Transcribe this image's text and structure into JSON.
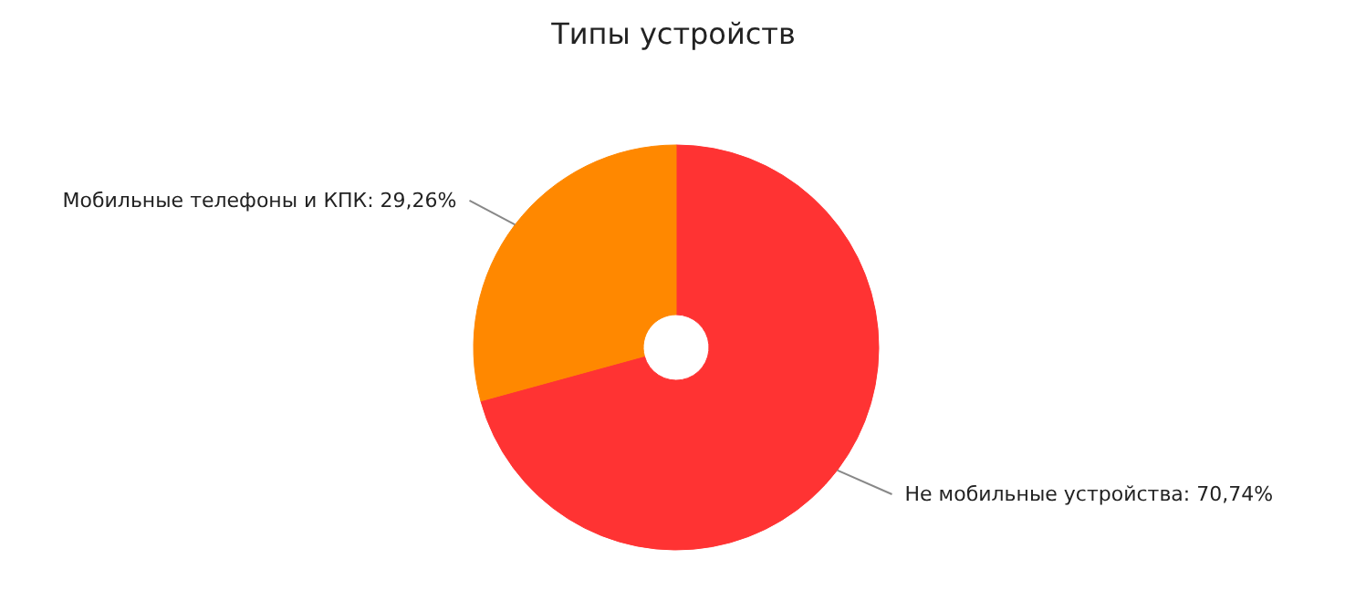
{
  "chart_data": {
    "type": "donut",
    "title": "Типы устройств",
    "categories": [
      "Не мобильные устройства",
      "Мобильные телефоны и КПК"
    ],
    "values": [
      70.74,
      29.26
    ],
    "value_labels": [
      "70,74%",
      "29,26%"
    ],
    "colors": [
      "#ff3333",
      "#ff8800"
    ]
  }
}
